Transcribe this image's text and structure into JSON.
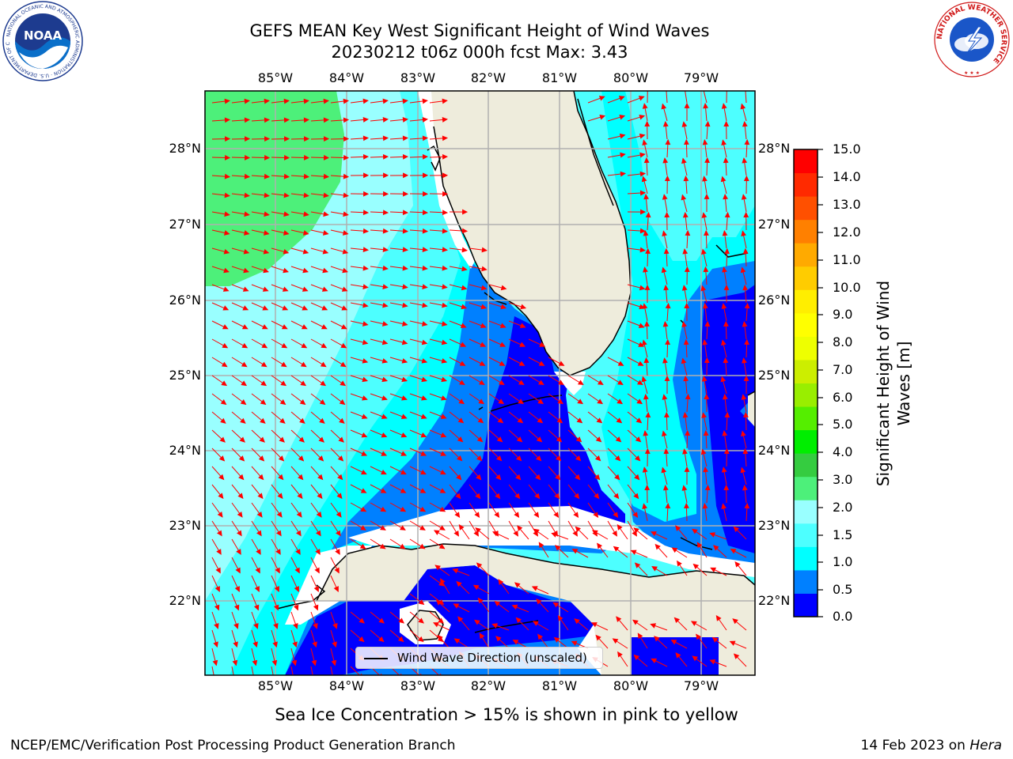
{
  "title": {
    "line1": "GEFS MEAN Key West Significant Height of Wind Waves",
    "line2": "20230212 t06z 000h fcst   Max: 3.43"
  },
  "map": {
    "lon_labels": [
      "85°W",
      "84°W",
      "83°W",
      "82°W",
      "81°W",
      "80°W",
      "79°W"
    ],
    "lat_labels": [
      "28°N",
      "27°N",
      "26°N",
      "25°N",
      "24°N",
      "23°N",
      "22°N"
    ],
    "colors": {
      "land": "#eeecdc",
      "coast": "#000000",
      "grid": "#b0b0b0",
      "arrow": "#ff0000",
      "blank": "#ffffff"
    }
  },
  "colorbar": {
    "label": "Significant Height of Wind Waves [m]",
    "ticks": [
      "15.0",
      "14.0",
      "13.0",
      "12.0",
      "11.0",
      "10.0",
      "9.0",
      "8.0",
      "7.0",
      "6.0",
      "5.0",
      "4.0",
      "3.0",
      "2.0",
      "1.5",
      "1.0",
      "0.5",
      "0.0"
    ],
    "colors": [
      "#0000ff",
      "#0080ff",
      "#00ffff",
      "#4dffff",
      "#99ffff",
      "#4df07a",
      "#35cc40",
      "#00ee00",
      "#55ee00",
      "#99ee00",
      "#ccee00",
      "#eeff00",
      "#ffff00",
      "#ffee00",
      "#ffcc00",
      "#ffaa00",
      "#ff8000",
      "#ff5000",
      "#ff2a00",
      "#ff0000"
    ]
  },
  "legend": {
    "label": "Wind Wave Direction (unscaled)"
  },
  "note": "Sea Ice Concentration > 15% is shown in pink to yellow",
  "footer": {
    "left": "NCEP/EMC/Verification Post Processing Product Generation Branch",
    "right_date": "14 Feb 2023 on ",
    "right_host": "Hera"
  },
  "logos": {
    "noaa": {
      "word": "NOAA",
      "ring_text": "NATIONAL OCEANIC AND ATMOSPHERIC ADMINISTRATION · U.S. DEPARTMENT OF COMMERCE"
    },
    "nws": {
      "ring_text": "NATIONAL WEATHER SERVICE"
    }
  }
}
